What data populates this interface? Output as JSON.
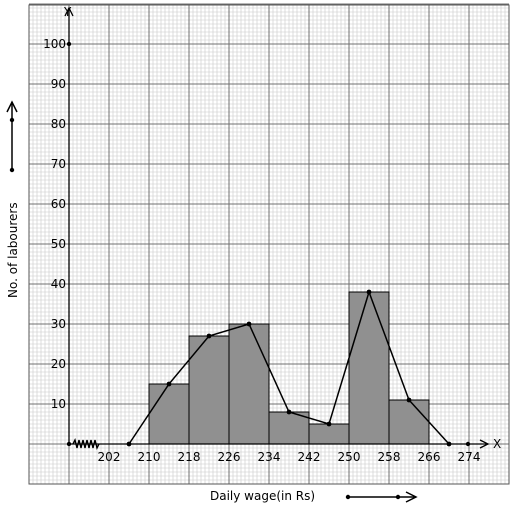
{
  "chart_data": {
    "type": "bar",
    "subtype": "histogram-with-frequency-polygon",
    "xlabel": "Daily wage(in Rs)",
    "ylabel": "No. of labourers",
    "x_axis_letter": "X",
    "y_axis_letter": "Y",
    "x_ticks": [
      "202",
      "210",
      "218",
      "226",
      "234",
      "242",
      "250",
      "258",
      "266",
      "274"
    ],
    "y_ticks": [
      "10",
      "20",
      "30",
      "40",
      "50",
      "60",
      "70",
      "80",
      "90",
      "100"
    ],
    "xlim": [
      194,
      280
    ],
    "ylim": [
      0,
      100
    ],
    "bins": [
      {
        "from": 210,
        "to": 218,
        "value": 15
      },
      {
        "from": 218,
        "to": 226,
        "value": 27
      },
      {
        "from": 226,
        "to": 234,
        "value": 30
      },
      {
        "from": 234,
        "to": 242,
        "value": 8
      },
      {
        "from": 242,
        "to": 250,
        "value": 5
      },
      {
        "from": 250,
        "to": 258,
        "value": 38
      },
      {
        "from": 258,
        "to": 266,
        "value": 11
      }
    ],
    "polygon": {
      "x": [
        206,
        214,
        222,
        230,
        238,
        246,
        254,
        262,
        270
      ],
      "y": [
        0,
        15,
        27,
        30,
        8,
        5,
        38,
        11,
        0
      ]
    },
    "grid": true,
    "axis_break": true,
    "colors": {
      "bar_fill": "#909090",
      "bar_stroke": "#000000",
      "polygon": "#000000",
      "grid_minor": "#c8c8c8",
      "grid_major": "#707070"
    }
  }
}
